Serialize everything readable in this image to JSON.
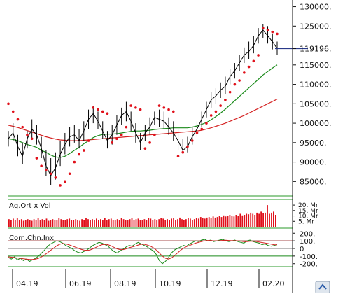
{
  "chart_data": [
    {
      "type": "line",
      "panel": "price",
      "x": [
        "04.19",
        "06.19",
        "08.19",
        "10.19",
        "12.19",
        "02.20"
      ],
      "ylim": [
        82000,
        131000
      ],
      "y_ticks": [
        "130000.",
        "125000.",
        "119196.",
        "115000.",
        "110000.",
        "105000.",
        "100000.",
        "95000.",
        "90000.",
        "85000."
      ],
      "y_tick_values": [
        130000,
        125000,
        119196,
        115000,
        110000,
        105000,
        100000,
        95000,
        90000,
        85000
      ],
      "current_value_label": "119196.",
      "current_value": 119196,
      "grid": false,
      "series_colors": {
        "price": "#000000",
        "ma_short": "#1a8a1a",
        "ma_long": "#d42020",
        "sar": "#e0101a"
      },
      "price": [
        96000,
        97500,
        94000,
        91500,
        96000,
        98500,
        97000,
        93500,
        89000,
        86500,
        88500,
        92000,
        94500,
        96500,
        97000,
        95500,
        98000,
        101000,
        102500,
        100500,
        98000,
        95500,
        97000,
        99500,
        102000,
        103000,
        100500,
        97500,
        95000,
        97500,
        99000,
        101500,
        101000,
        100500,
        99000,
        97500,
        95500,
        93000,
        94000,
        96500,
        98500,
        101000,
        103500,
        106000,
        107000,
        108500,
        109500,
        112000,
        113500,
        115500,
        117500,
        118500,
        120000,
        122500,
        124000,
        122500,
        121000,
        119196
      ],
      "price_high": [
        98000,
        100000,
        97000,
        95000,
        98000,
        101000,
        99500,
        96500,
        93000,
        91000,
        92500,
        95500,
        97500,
        99000,
        99500,
        98500,
        100500,
        103500,
        104500,
        103000,
        100500,
        98000,
        99500,
        102000,
        104000,
        105500,
        103000,
        100000,
        97500,
        99500,
        101500,
        103000,
        103500,
        103000,
        101500,
        100500,
        98500,
        96000,
        96500,
        99000,
        100500,
        103000,
        105500,
        108000,
        109000,
        110500,
        112000,
        114000,
        115500,
        117500,
        119500,
        121000,
        122500,
        124500,
        125500,
        125000,
        123000,
        121000
      ],
      "price_low": [
        94000,
        95500,
        91500,
        89500,
        93500,
        96000,
        94500,
        91000,
        86500,
        84000,
        85500,
        89000,
        92000,
        94000,
        95000,
        93500,
        95500,
        98500,
        100000,
        98500,
        96000,
        93500,
        94500,
        97000,
        99500,
        100500,
        98000,
        95000,
        93000,
        95500,
        97000,
        99500,
        99000,
        98500,
        97000,
        95500,
        93000,
        92500,
        92500,
        94500,
        96500,
        99000,
        101500,
        104000,
        105000,
        106500,
        107500,
        110000,
        111500,
        113500,
        115500,
        116500,
        118000,
        120500,
        122000,
        120500,
        119000,
        117500
      ],
      "ma_short": [
        96000,
        95800,
        95500,
        95000,
        94500,
        94200,
        93800,
        93000,
        92500,
        91800,
        91300,
        91200,
        91500,
        92200,
        93000,
        93800,
        94700,
        95500,
        96300,
        96800,
        97100,
        97200,
        97200,
        97300,
        97500,
        97700,
        97900,
        98000,
        98000,
        98100,
        98200,
        98400,
        98500,
        98600,
        98700,
        98800,
        98800,
        98800,
        98800,
        99000,
        99300,
        99700,
        100200,
        100900,
        101700,
        102600,
        103600,
        104700,
        105800,
        106900,
        108000,
        109100,
        110200,
        111300,
        112400,
        113300,
        114200,
        115000
      ],
      "ma_long": [
        99500,
        99200,
        98900,
        98500,
        98100,
        97700,
        97300,
        96900,
        96500,
        96200,
        95900,
        95700,
        95600,
        95500,
        95500,
        95500,
        95600,
        95700,
        95800,
        95900,
        96000,
        96100,
        96200,
        96300,
        96400,
        96500,
        96600,
        96700,
        96800,
        96900,
        97000,
        97100,
        97200,
        97300,
        97400,
        97500,
        97600,
        97700,
        97800,
        97900,
        98000,
        98200,
        98500,
        98800,
        99200,
        99600,
        100000,
        100500,
        101000,
        101500,
        102000,
        102600,
        103200,
        103800,
        104400,
        105000,
        105600,
        106200
      ],
      "sar": [
        105000,
        103000,
        101000,
        99000,
        97000,
        96000,
        91000,
        89000,
        88000,
        87000,
        86000,
        84000,
        85000,
        87000,
        90000,
        92000,
        93000,
        95500,
        104000,
        103500,
        103000,
        102500,
        95000,
        96000,
        97000,
        99000,
        104500,
        104000,
        103500,
        93500,
        95000,
        97000,
        104500,
        104000,
        103500,
        103000,
        91500,
        92500,
        94000,
        95500,
        97500,
        98500,
        100000,
        102000,
        103000,
        104500,
        106000,
        108000,
        110000,
        111000,
        113000,
        114500,
        116000,
        117500,
        124500,
        124000,
        123500,
        123000
      ]
    },
    {
      "type": "bar",
      "panel": "volume",
      "title": "Ag.Ort x Vol",
      "y_ticks": [
        "20. Mr",
        "15. Mr",
        "10. Mr",
        "5. Mr"
      ],
      "y_tick_values": [
        20,
        15,
        10,
        5
      ],
      "ylim": [
        0,
        22
      ],
      "color": "#e0101a",
      "values": [
        7,
        6.5,
        7.5,
        6,
        8,
        6.5,
        7,
        5.5,
        6,
        7,
        6.5,
        5.5,
        7,
        6,
        8,
        6.5,
        7,
        6,
        7.5,
        5.5,
        6,
        7,
        6.5,
        6,
        8,
        7,
        6.5,
        6,
        7,
        7.5,
        6,
        6.5,
        7,
        6,
        5.5,
        7,
        6,
        8,
        7,
        6.5,
        7,
        6,
        7.5,
        6.5,
        7,
        6,
        8,
        6.5,
        7,
        7.5,
        6,
        6.5,
        7,
        6,
        8,
        7,
        6.5,
        6,
        7,
        8,
        6.5,
        7,
        7.5,
        6,
        6.5,
        7,
        6,
        8,
        7.5,
        6.5,
        7,
        6.5,
        7,
        8,
        7.5,
        6.5,
        7,
        6,
        7.5,
        8,
        6.5,
        7,
        8.5,
        7,
        6.5,
        7,
        8,
        7.5,
        6.5,
        7,
        8,
        7.5,
        9,
        8,
        7.5,
        8.5,
        9,
        8,
        9.5,
        8.5,
        9,
        10,
        9,
        10.5,
        9.5,
        10,
        11,
        10,
        9.5,
        11,
        10,
        12,
        10.5,
        11,
        12,
        11.5,
        13,
        12,
        11,
        13,
        12,
        14,
        12.5,
        13,
        20,
        12,
        13,
        14,
        11
      ]
    },
    {
      "type": "line",
      "panel": "cci",
      "title": "Com.Chn.Inx",
      "y_ticks": [
        "200.",
        "100.",
        "0",
        "-100.",
        "-200."
      ],
      "y_tick_values": [
        200,
        100,
        0,
        -100,
        -200
      ],
      "ylim": [
        -230,
        230
      ],
      "cci": [
        -120,
        -140,
        -110,
        -150,
        -130,
        -160,
        -140,
        -170,
        -150,
        -130,
        -100,
        -60,
        -20,
        30,
        60,
        80,
        100,
        90,
        70,
        40,
        20,
        0,
        -30,
        -50,
        -60,
        -40,
        -20,
        10,
        40,
        60,
        80,
        70,
        50,
        30,
        -10,
        -40,
        -60,
        -30,
        -10,
        20,
        40,
        30,
        60,
        80,
        60,
        40,
        20,
        -10,
        -30,
        -80,
        -160,
        -200,
        -170,
        -120,
        -60,
        -20,
        0,
        20,
        40,
        30,
        60,
        80,
        100,
        90,
        110,
        120,
        100,
        110,
        90,
        100,
        110,
        120,
        100,
        90,
        100,
        110,
        90,
        80,
        70,
        100,
        110,
        90,
        80,
        70,
        50,
        60,
        40,
        30,
        40,
        50
      ],
      "signal": [
        -110,
        -115,
        -120,
        -125,
        -130,
        -135,
        -140,
        -145,
        -145,
        -140,
        -130,
        -110,
        -85,
        -55,
        -25,
        5,
        35,
        55,
        65,
        60,
        50,
        35,
        20,
        5,
        -10,
        -20,
        -25,
        -20,
        -5,
        15,
        35,
        50,
        55,
        50,
        35,
        15,
        -5,
        -15,
        -15,
        -5,
        10,
        20,
        30,
        45,
        55,
        55,
        45,
        30,
        10,
        -20,
        -60,
        -100,
        -130,
        -140,
        -125,
        -95,
        -60,
        -25,
        5,
        25,
        40,
        55,
        70,
        80,
        90,
        100,
        105,
        105,
        100,
        100,
        102,
        106,
        108,
        105,
        102,
        102,
        100,
        96,
        90,
        90,
        94,
        96,
        92,
        86,
        78,
        72,
        64,
        56,
        50,
        48
      ]
    }
  ],
  "x_labels": [
    "04.19",
    "06.19",
    "08.19",
    "10.19",
    "12.19",
    "02.20"
  ]
}
